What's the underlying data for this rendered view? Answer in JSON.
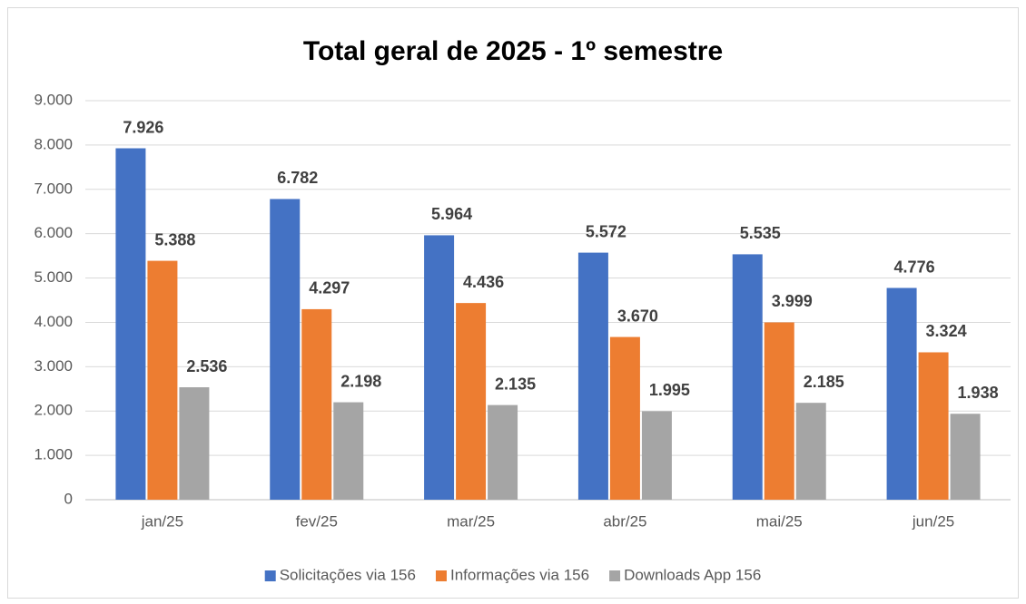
{
  "chart_data": {
    "type": "bar",
    "title": "Total geral de 2025 - 1º semestre",
    "categories": [
      "jan/25",
      "fev/25",
      "mar/25",
      "abr/25",
      "mai/25",
      "jun/25"
    ],
    "series": [
      {
        "name": "Solicitações via 156",
        "color": "#4472c4",
        "values": [
          7926,
          6782,
          5964,
          5572,
          5535,
          4776
        ],
        "value_labels": [
          "7.926",
          "6.782",
          "5.964",
          "5.572",
          "5.535",
          "4.776"
        ]
      },
      {
        "name": "Informações via 156",
        "color": "#ed7d31",
        "values": [
          5388,
          4297,
          4436,
          3670,
          3999,
          3324
        ],
        "value_labels": [
          "5.388",
          "4.297",
          "4.436",
          "3.670",
          "3.999",
          "3.324"
        ]
      },
      {
        "name": "Downloads App 156",
        "color": "#a5a5a5",
        "values": [
          2536,
          2198,
          2135,
          1995,
          2185,
          1938
        ],
        "value_labels": [
          "2.536",
          "2.198",
          "2.135",
          "1.995",
          "2.185",
          "1.938"
        ]
      }
    ],
    "ylim": [
      0,
      9000
    ],
    "yticks": [
      0,
      {
        "value": 1000,
        "label": "1.000"
      },
      {
        "value": 2000,
        "label": "2.000"
      },
      {
        "value": 3000,
        "label": "3.000"
      },
      {
        "value": 4000,
        "label": "4.000"
      },
      {
        "value": 5000,
        "label": "5.000"
      },
      {
        "value": 6000,
        "label": "6.000"
      },
      {
        "value": 7000,
        "label": "7.000"
      },
      {
        "value": 8000,
        "label": "8.000"
      },
      {
        "value": 9000,
        "label": "9.000"
      }
    ],
    "grid": true,
    "legend": "bottom"
  }
}
